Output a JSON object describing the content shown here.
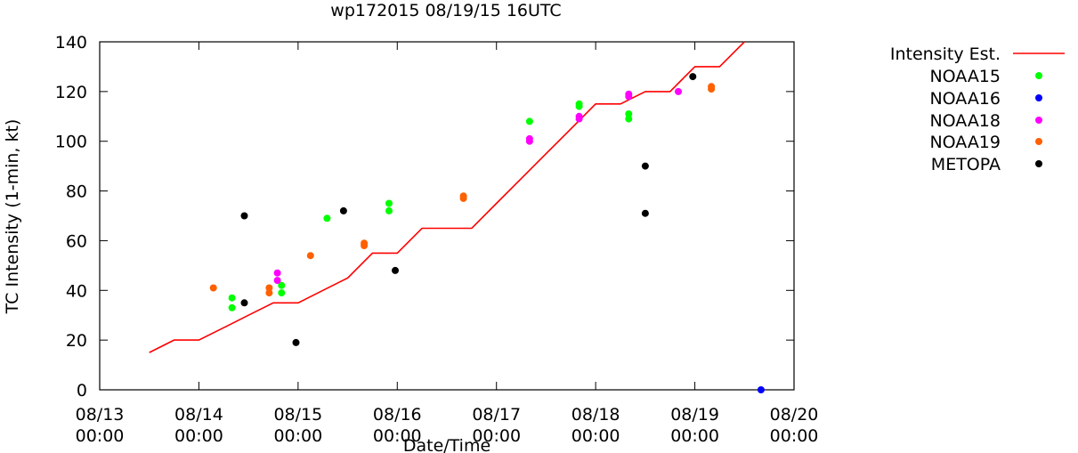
{
  "chart_data": {
    "type": "scatter",
    "title": "wp172015 08/19/15 16UTC",
    "xlabel": "Date/Time",
    "ylabel": "TC Intensity (1-min, kt)",
    "xlim": [
      "08/13 00:00",
      "08/20 00:00"
    ],
    "ylim": [
      0,
      140
    ],
    "grid": false,
    "legend_position": "right",
    "y_ticks": [
      "0",
      "20",
      "40",
      "60",
      "80",
      "100",
      "120",
      "140"
    ],
    "x_ticks": [
      {
        "date": "08/13",
        "time": "00:00"
      },
      {
        "date": "08/14",
        "time": "00:00"
      },
      {
        "date": "08/15",
        "time": "00:00"
      },
      {
        "date": "08/16",
        "time": "00:00"
      },
      {
        "date": "08/17",
        "time": "00:00"
      },
      {
        "date": "08/18",
        "time": "00:00"
      },
      {
        "date": "08/19",
        "time": "00:00"
      },
      {
        "date": "08/20",
        "time": "00:00"
      }
    ],
    "line_series": {
      "name": "Intensity Est.",
      "color": "#ff0000",
      "points": [
        [
          "08/13 12:00",
          15
        ],
        [
          "08/13 18:00",
          20
        ],
        [
          "08/14 00:00",
          20
        ],
        [
          "08/14 06:00",
          25
        ],
        [
          "08/14 12:00",
          30
        ],
        [
          "08/14 18:00",
          35
        ],
        [
          "08/15 00:00",
          35
        ],
        [
          "08/15 06:00",
          40
        ],
        [
          "08/15 12:00",
          45
        ],
        [
          "08/15 18:00",
          55
        ],
        [
          "08/16 00:00",
          55
        ],
        [
          "08/16 06:00",
          65
        ],
        [
          "08/16 12:00",
          65
        ],
        [
          "08/16 18:00",
          65
        ],
        [
          "08/17 00:00",
          75
        ],
        [
          "08/17 06:00",
          85
        ],
        [
          "08/17 12:00",
          95
        ],
        [
          "08/17 18:00",
          105
        ],
        [
          "08/18 00:00",
          115
        ],
        [
          "08/18 06:00",
          115
        ],
        [
          "08/18 12:00",
          120
        ],
        [
          "08/18 18:00",
          120
        ],
        [
          "08/19 00:00",
          130
        ],
        [
          "08/19 06:00",
          130
        ],
        [
          "08/19 12:00",
          140
        ]
      ]
    },
    "series": [
      {
        "name": "NOAA15",
        "color": "#00ff00",
        "points": [
          [
            "08/14 08:00",
            37
          ],
          [
            "08/14 08:00",
            33
          ],
          [
            "08/14 20:00",
            42
          ],
          [
            "08/14 20:00",
            39
          ],
          [
            "08/15 07:00",
            69
          ],
          [
            "08/15 22:00",
            75
          ],
          [
            "08/15 22:00",
            72
          ],
          [
            "08/17 08:00",
            108
          ],
          [
            "08/17 20:00",
            115
          ],
          [
            "08/17 20:00",
            114
          ],
          [
            "08/18 08:00",
            111
          ],
          [
            "08/18 08:00",
            109
          ]
        ]
      },
      {
        "name": "NOAA16",
        "color": "#0000ff",
        "points": [
          [
            "08/19 16:00",
            0
          ]
        ]
      },
      {
        "name": "NOAA18",
        "color": "#ff00ff",
        "points": [
          [
            "08/14 19:00",
            47
          ],
          [
            "08/14 19:00",
            44
          ],
          [
            "08/17 08:00",
            101
          ],
          [
            "08/17 08:00",
            100
          ],
          [
            "08/17 20:00",
            110
          ],
          [
            "08/17 20:00",
            109
          ],
          [
            "08/18 08:00",
            119
          ],
          [
            "08/18 08:00",
            118
          ],
          [
            "08/18 20:00",
            120
          ]
        ]
      },
      {
        "name": "NOAA19",
        "color": "#ff6000",
        "points": [
          [
            "08/14 03:30",
            41
          ],
          [
            "08/14 17:00",
            41
          ],
          [
            "08/14 17:00",
            39
          ],
          [
            "08/15 03:00",
            54
          ],
          [
            "08/15 16:00",
            59
          ],
          [
            "08/15 16:00",
            58
          ],
          [
            "08/16 16:00",
            78
          ],
          [
            "08/16 16:00",
            77
          ],
          [
            "08/19 04:00",
            122
          ],
          [
            "08/19 04:00",
            121
          ]
        ]
      },
      {
        "name": "METOPA",
        "color": "#000000",
        "points": [
          [
            "08/14 11:00",
            70
          ],
          [
            "08/14 11:00",
            35
          ],
          [
            "08/14 23:30",
            19
          ],
          [
            "08/15 11:00",
            72
          ],
          [
            "08/15 23:30",
            48
          ],
          [
            "08/18 12:00",
            90
          ],
          [
            "08/18 12:00",
            71
          ],
          [
            "08/18 23:30",
            126
          ]
        ]
      }
    ]
  }
}
